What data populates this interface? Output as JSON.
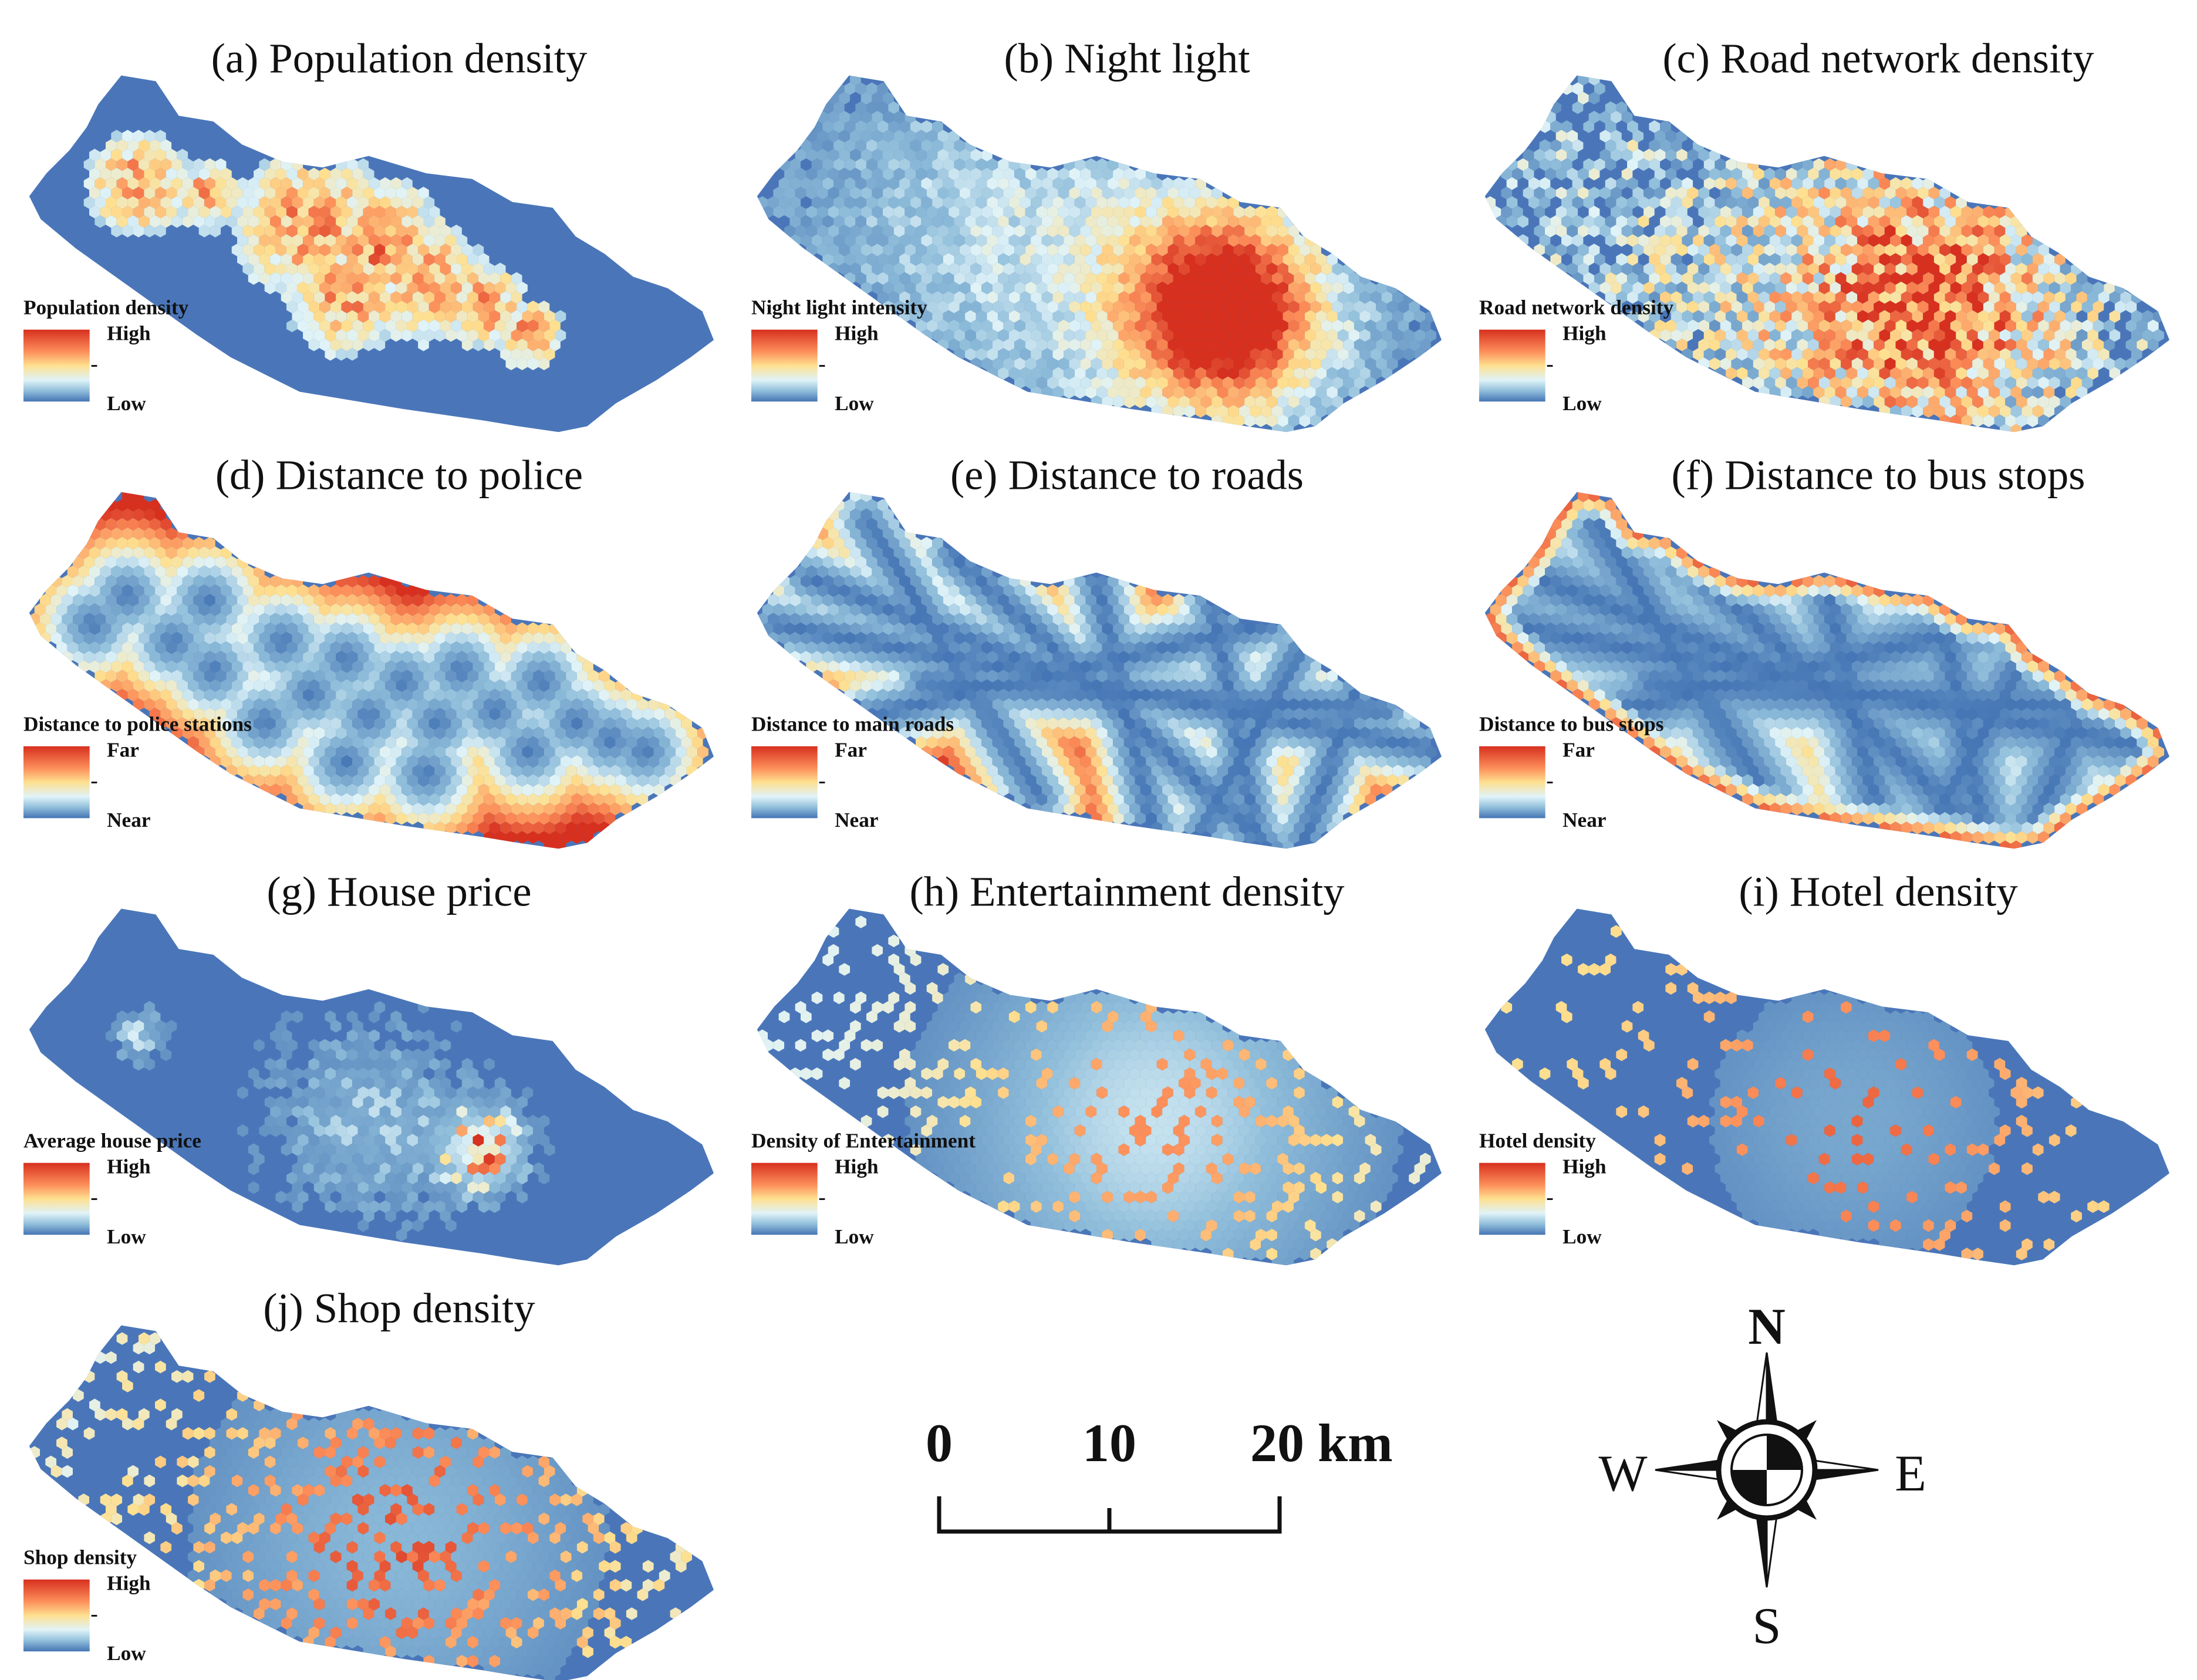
{
  "panels": [
    {
      "id": "a",
      "title": "(a) Population density",
      "legend_title": "Population density",
      "high_label": "High",
      "low_label": "Low",
      "pattern": "population"
    },
    {
      "id": "b",
      "title": "(b) Night light",
      "legend_title": "Night light intensity",
      "high_label": "High",
      "low_label": "Low",
      "pattern": "nightlight"
    },
    {
      "id": "c",
      "title": "(c) Road network density",
      "legend_title": "Road network density",
      "high_label": "High",
      "low_label": "Low",
      "pattern": "roadnet"
    },
    {
      "id": "d",
      "title": "(d) Distance to police",
      "legend_title": "Distance to police stations",
      "high_label": "Far",
      "low_label": "Near",
      "pattern": "police"
    },
    {
      "id": "e",
      "title": "(e)  Distance to roads",
      "legend_title": "Distance to main roads",
      "high_label": "Far",
      "low_label": "Near",
      "pattern": "roads"
    },
    {
      "id": "f",
      "title": "(f) Distance to bus stops",
      "legend_title": "Distance to bus stops",
      "high_label": "Far",
      "low_label": "Near",
      "pattern": "bus"
    },
    {
      "id": "g",
      "title": "(g) House price",
      "legend_title": "Average house price",
      "high_label": "High",
      "low_label": "Low",
      "pattern": "house"
    },
    {
      "id": "h",
      "title": "(h) Entertainment density",
      "legend_title": "Density of Entertainment",
      "high_label": "High",
      "low_label": "Low",
      "pattern": "entertainment"
    },
    {
      "id": "i",
      "title": "(i) Hotel density",
      "legend_title": "Hotel density",
      "high_label": "High",
      "low_label": "Low",
      "pattern": "hotel"
    },
    {
      "id": "j",
      "title": "(j) Shop density",
      "legend_title": "Shop density",
      "high_label": "High",
      "low_label": "Low",
      "pattern": "shop"
    }
  ],
  "color_ramp": [
    "#d7301f",
    "#fc8d59",
    "#fee090",
    "#e0f3f8",
    "#91bfdb",
    "#4575b4"
  ],
  "background_color": "#4a76b9",
  "scale_bar": {
    "labels": [
      "0",
      "10",
      "20 km"
    ],
    "values_km": [
      0,
      10,
      20
    ]
  },
  "compass": {
    "north": "N",
    "south": "S",
    "east": "E",
    "west": "W"
  }
}
